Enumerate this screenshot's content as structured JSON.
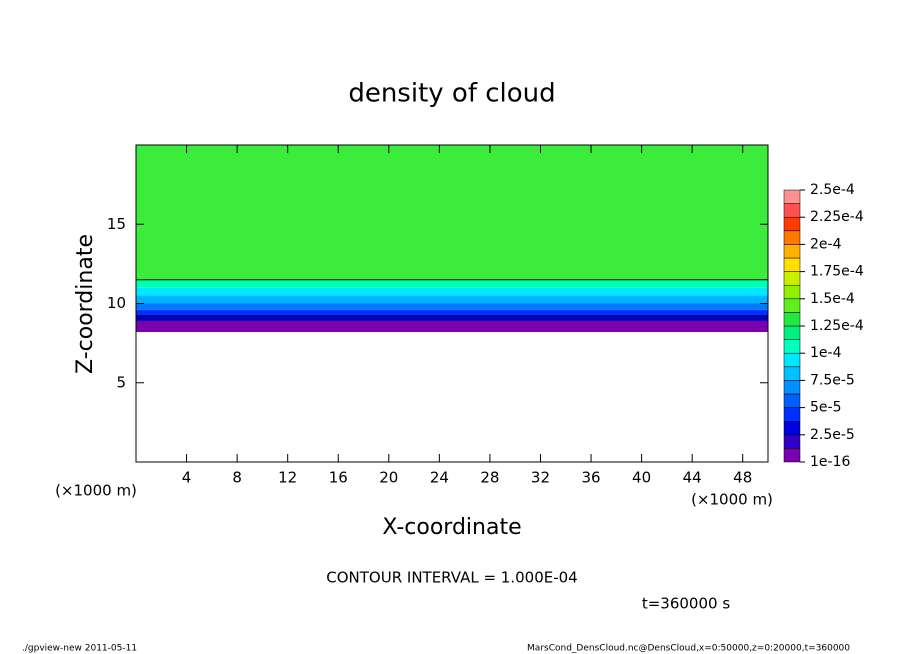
{
  "chart_data": {
    "type": "contour",
    "title": "density of cloud",
    "xlabel": "X-coordinate",
    "ylabel": "Z-coordinate",
    "x_unit_label": "(×1000 m)",
    "y_unit_label": "(×1000 m)",
    "xlim": [
      0,
      50
    ],
    "xticks": [
      4,
      8,
      12,
      16,
      20,
      24,
      28,
      32,
      36,
      40,
      44,
      48
    ],
    "ylim": [
      0,
      20
    ],
    "yticks": [
      5,
      10,
      15
    ],
    "layers": [
      {
        "color": "#7a00b0",
        "z": [
          8.2,
          8.9
        ]
      },
      {
        "color": "#0000b4",
        "z": [
          8.9,
          9.3
        ]
      },
      {
        "color": "#0030ff",
        "z": [
          9.3,
          9.6
        ]
      },
      {
        "color": "#0078ff",
        "z": [
          9.6,
          10.0
        ]
      },
      {
        "color": "#00b4ff",
        "z": [
          10.0,
          10.5
        ]
      },
      {
        "color": "#00e8ff",
        "z": [
          10.5,
          11.0
        ]
      },
      {
        "color": "#00ffb0",
        "z": [
          11.0,
          11.5
        ]
      },
      {
        "color": "#3cec3c",
        "z": [
          11.5,
          20
        ]
      }
    ],
    "contour_z": 11.5,
    "colorbar": {
      "levels": [
        {
          "value": 1e-16,
          "label": "1e-16"
        },
        {
          "value": 2.5e-05,
          "label": "2.5e-5"
        },
        {
          "value": 5e-05,
          "label": "5e-5"
        },
        {
          "value": 7.5e-05,
          "label": "7.5e-5"
        },
        {
          "value": 0.0001,
          "label": "1e-4"
        },
        {
          "value": 0.000125,
          "label": "1.25e-4"
        },
        {
          "value": 0.00015,
          "label": "1.5e-4"
        },
        {
          "value": 0.000175,
          "label": "1.75e-4"
        },
        {
          "value": 0.0002,
          "label": "2e-4"
        },
        {
          "value": 0.000225,
          "label": "2.25e-4"
        },
        {
          "value": 0.00025,
          "label": "2.5e-4"
        }
      ],
      "colors": [
        "#7a00b0",
        "#3000c8",
        "#0000e0",
        "#0030ff",
        "#0060ff",
        "#0090ff",
        "#00c0ff",
        "#00e8ff",
        "#00ffc0",
        "#00f080",
        "#20e840",
        "#60f020",
        "#90f000",
        "#c8f000",
        "#ffe000",
        "#ffb000",
        "#ff7800",
        "#ff3c00",
        "#ff5050",
        "#ff9090"
      ]
    },
    "contour_interval_text": "CONTOUR INTERVAL = 1.000E-04",
    "time_label": "t=360000 s",
    "footer_left": "./gpview-new   2011-05-11",
    "footer_right": "MarsCond_DensCloud.nc@DensCloud,x=0:50000,z=0:20000,t=360000"
  }
}
